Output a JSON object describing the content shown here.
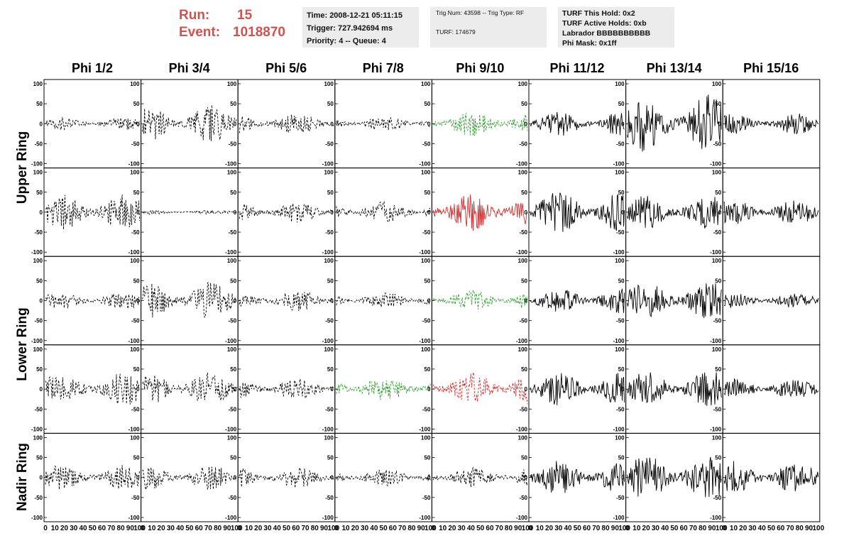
{
  "header": {
    "run_label": "Run:",
    "run_value": "15",
    "event_label": "Event:",
    "event_value": "1018870"
  },
  "info_time": {
    "time": "Time: 2008-12-21 05:11:15",
    "trigger": "Trigger: 727.942694 ms",
    "priority": "Priority: 4 -- Queue: 4"
  },
  "info_trig": {
    "trig": "Trig Num: 43598 -- Trig Type: RF",
    "turf": "TURF: 174679"
  },
  "info_turf": {
    "hold": "TURF This Hold: 0x2",
    "active": "TURF Active Holds: 0xb",
    "labrador": "Labrador BBBBBBBBBB",
    "phimask": "Phi Mask: 0x1ff"
  },
  "columns": [
    "Phi 1/2",
    "Phi 3/4",
    "Phi 5/6",
    "Phi 7/8",
    "Phi 9/10",
    "Phi 11/12",
    "Phi 13/14",
    "Phi 15/16"
  ],
  "rows": [
    "Upper Ring",
    "Lower Ring",
    "Nadir Ring"
  ],
  "colors": {
    "black": "#000000",
    "green": "#2e9a2e",
    "red": "#d42c2c"
  },
  "chart_data": {
    "type": "line",
    "xlim": [
      0,
      100
    ],
    "ylim": [
      -100,
      100
    ],
    "x_ticks": [
      "0",
      "10",
      "20",
      "30",
      "40",
      "50",
      "60",
      "70",
      "80",
      "90",
      "100"
    ],
    "y_ticks": [
      "100",
      "50",
      "0",
      "-50",
      "-100"
    ],
    "panel_amplitudes": [
      [
        15,
        45,
        25,
        18,
        30,
        30,
        70,
        25
      ],
      [
        45,
        5,
        25,
        25,
        45,
        50,
        40,
        30
      ],
      [
        20,
        45,
        25,
        20,
        25,
        30,
        45,
        18
      ],
      [
        40,
        40,
        25,
        30,
        40,
        40,
        45,
        25
      ],
      [
        30,
        30,
        25,
        20,
        25,
        40,
        55,
        40
      ]
    ],
    "panel_colors": [
      [
        "black",
        "black",
        "black",
        "black",
        "green",
        "black",
        "black",
        "black"
      ],
      [
        "black",
        "black",
        "black",
        "black",
        "red",
        "black",
        "black",
        "black"
      ],
      [
        "black",
        "black",
        "black",
        "black",
        "green",
        "black",
        "black",
        "black"
      ],
      [
        "black",
        "black",
        "black",
        "green",
        "red",
        "black",
        "black",
        "black"
      ],
      [
        "black",
        "black",
        "black",
        "black",
        "black",
        "black",
        "black",
        "black"
      ]
    ],
    "panel_dashed": [
      [
        true,
        true,
        true,
        true,
        true,
        false,
        false,
        false
      ],
      [
        true,
        true,
        true,
        true,
        false,
        false,
        false,
        false
      ],
      [
        true,
        true,
        true,
        true,
        true,
        false,
        false,
        false
      ],
      [
        true,
        true,
        true,
        true,
        true,
        false,
        false,
        false
      ],
      [
        true,
        true,
        true,
        true,
        true,
        false,
        false,
        false
      ]
    ]
  }
}
